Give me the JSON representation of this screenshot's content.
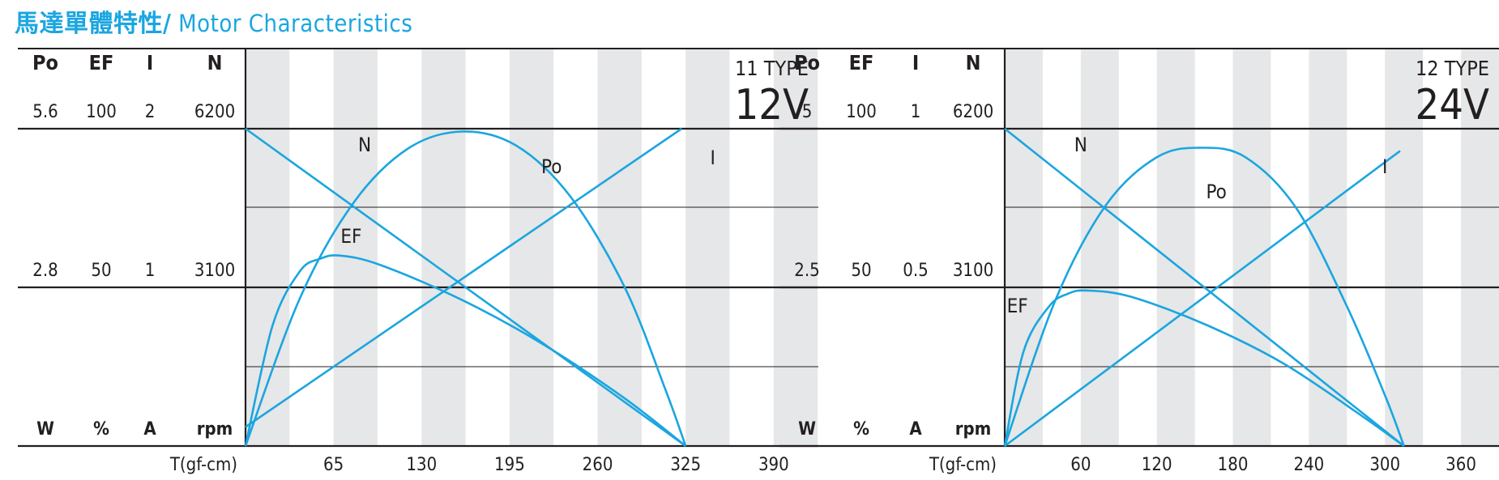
{
  "page_title": {
    "zh": "馬達單體特性/",
    "en": " Motor Characteristics"
  },
  "colors": {
    "accent": "#1aa6e0",
    "curve": "#1aa6e0",
    "grid_band": "#e6e7e8",
    "axis": "#231f20"
  },
  "chart_data": [
    {
      "type": "line",
      "title": "11 TYPE",
      "voltage": "12V",
      "xlabel": "T(gf-cm)",
      "x_ticks": [
        "65",
        "130",
        "195",
        "260",
        "325",
        "390"
      ],
      "xlim": [
        0,
        423
      ],
      "columns": [
        {
          "name": "Po",
          "unit": "W",
          "max": "5.6",
          "mid": "2.8"
        },
        {
          "name": "EF",
          "unit": "%",
          "max": "100",
          "mid": "50"
        },
        {
          "name": "I",
          "unit": "A",
          "max": "2",
          "mid": "1"
        },
        {
          "name": "N",
          "unit": "rpm",
          "max": "6200",
          "mid": "3100"
        }
      ],
      "series": [
        {
          "name": "N",
          "unit": "rpm",
          "x": [
            0,
            325
          ],
          "values": [
            6200,
            0
          ]
        },
        {
          "name": "I",
          "unit": "A",
          "x": [
            0,
            322
          ],
          "values": [
            0.12,
            2.0
          ]
        },
        {
          "name": "Po",
          "unit": "W",
          "x": [
            0,
            40,
            80,
            120,
            160,
            200,
            240,
            280,
            310,
            325
          ],
          "values": [
            0,
            2.6,
            4.3,
            5.25,
            5.55,
            5.3,
            4.4,
            2.8,
            1.0,
            0
          ]
        },
        {
          "name": "EF",
          "unit": "%",
          "x": [
            0,
            20,
            40,
            55,
            70,
            100,
            160,
            220,
            280,
            325
          ],
          "values": [
            0,
            38,
            55,
            59,
            60,
            57,
            46,
            32,
            15,
            0
          ]
        }
      ],
      "labels": {
        "N": "N",
        "Po": "Po",
        "I": "I",
        "EF": "EF"
      }
    },
    {
      "type": "line",
      "title": "12 TYPE",
      "voltage": "24V",
      "xlabel": "T(gf-cm)",
      "x_ticks": [
        "60",
        "120",
        "180",
        "240",
        "300",
        "360"
      ],
      "xlim": [
        0,
        390
      ],
      "columns": [
        {
          "name": "Po",
          "unit": "W",
          "max": "5",
          "mid": "2.5"
        },
        {
          "name": "EF",
          "unit": "%",
          "max": "100",
          "mid": "50"
        },
        {
          "name": "I",
          "unit": "A",
          "max": "1",
          "mid": "0.5"
        },
        {
          "name": "N",
          "unit": "rpm",
          "max": "6200",
          "mid": "3100"
        }
      ],
      "series": [
        {
          "name": "N",
          "unit": "rpm",
          "x": [
            0,
            315
          ],
          "values": [
            6200,
            0
          ]
        },
        {
          "name": "I",
          "unit": "A",
          "x": [
            0,
            312
          ],
          "values": [
            0,
            0.93
          ]
        },
        {
          "name": "Po",
          "unit": "W",
          "x": [
            0,
            40,
            80,
            120,
            155,
            190,
            230,
            270,
            300,
            315
          ],
          "values": [
            0,
            2.3,
            3.8,
            4.55,
            4.7,
            4.55,
            3.75,
            2.2,
            0.8,
            0
          ]
        },
        {
          "name": "EF",
          "unit": "%",
          "x": [
            0,
            15,
            35,
            50,
            65,
            100,
            160,
            220,
            280,
            315
          ],
          "values": [
            0,
            30,
            44,
            48,
            49,
            47,
            38,
            26,
            10,
            0
          ]
        }
      ],
      "labels": {
        "N": "N",
        "Po": "Po",
        "I": "I",
        "EF": "EF"
      }
    }
  ]
}
